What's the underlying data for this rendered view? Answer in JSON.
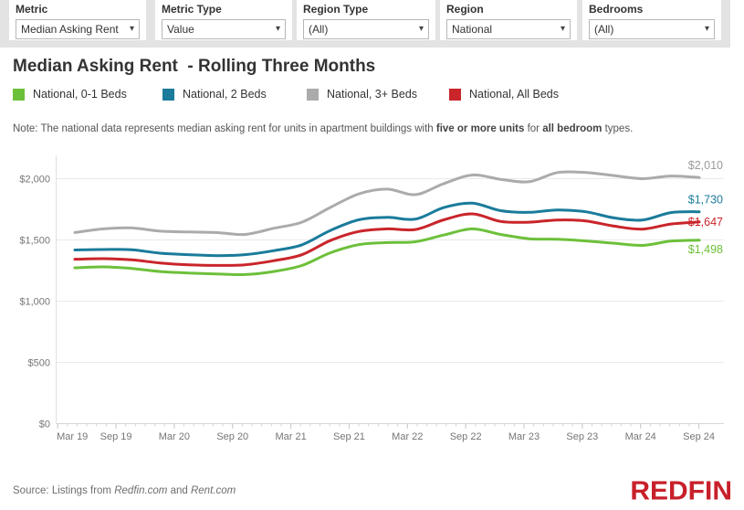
{
  "filters": [
    {
      "label": "Metric",
      "value": "Median Asking Rent"
    },
    {
      "label": "Metric Type",
      "value": "Value"
    },
    {
      "label": "Region Type",
      "value": "(All)"
    },
    {
      "label": "Region",
      "value": "National"
    },
    {
      "label": "Bedrooms",
      "value": "(All)"
    }
  ],
  "title": "Median Asking Rent  - Rolling Three Months",
  "note": {
    "prefix": "Note: The national data represents median asking rent for units in apartment buildings with ",
    "bold1": "five or more units",
    "mid": " for ",
    "bold2": "all bedroom",
    "suffix": " types."
  },
  "source": {
    "prefix": "Source: Listings from ",
    "italic1": "Redfin.com",
    "mid": " and ",
    "italic2": "Rent.com"
  },
  "logo_text": "REDFIN",
  "brand_color": "#C8202A",
  "chart_data": {
    "type": "line",
    "title": "Median Asking Rent  - Rolling Three Months",
    "xlabel": "",
    "ylabel": "",
    "ylim": [
      0,
      2150
    ],
    "grid": "horizontal",
    "legend_position": "top",
    "y_ticks": [
      0,
      500,
      1000,
      1500,
      2000
    ],
    "y_tick_labels": [
      "$0",
      "$500",
      "$1,000",
      "$1,500",
      "$2,000"
    ],
    "x_tick_labels": [
      "Mar 19",
      "Sep 19",
      "Mar 20",
      "Sep 20",
      "Mar 21",
      "Sep 21",
      "Mar 22",
      "Sep 22",
      "Mar 23",
      "Sep 23",
      "Mar 24",
      "Sep 24"
    ],
    "categories": [
      "Mar 19",
      "Jun 19",
      "Sep 19",
      "Dec 19",
      "Mar 20",
      "Jun 20",
      "Sep 20",
      "Dec 20",
      "Mar 21",
      "Jun 21",
      "Sep 21",
      "Dec 21",
      "Mar 22",
      "Jun 22",
      "Sep 22",
      "Dec 22",
      "Mar 23",
      "Jun 23",
      "Sep 23",
      "Dec 23",
      "Mar 24",
      "Jun 24",
      "Sep 24"
    ],
    "series": [
      {
        "name": "National, 0-1 Beds",
        "color": "#6DC03A",
        "end_label": "$1,498",
        "end_value": 1498,
        "values": [
          1272,
          1280,
          1267,
          1242,
          1230,
          1222,
          1217,
          1242,
          1291,
          1395,
          1461,
          1478,
          1485,
          1540,
          1590,
          1545,
          1510,
          1505,
          1492,
          1473,
          1455,
          1490,
          1498
        ]
      },
      {
        "name": "National, 2 Beds",
        "color": "#1A7B9B",
        "end_label": "$1,730",
        "end_value": 1730,
        "values": [
          1418,
          1422,
          1420,
          1392,
          1380,
          1372,
          1380,
          1412,
          1460,
          1577,
          1664,
          1684,
          1670,
          1764,
          1800,
          1739,
          1725,
          1745,
          1730,
          1680,
          1663,
          1723,
          1730
        ]
      },
      {
        "name": "National, 3+ Beds",
        "color": "#ABABAB",
        "end_label": "$2,010",
        "end_value": 2010,
        "values": [
          1560,
          1590,
          1598,
          1572,
          1565,
          1560,
          1545,
          1595,
          1645,
          1765,
          1875,
          1915,
          1870,
          1960,
          2030,
          1995,
          1975,
          2050,
          2050,
          2025,
          2000,
          2022,
          2010
        ]
      },
      {
        "name": "National, All Beds",
        "color": "#C9252B",
        "end_label": "$1,647",
        "end_value": 1647,
        "values": [
          1342,
          1347,
          1337,
          1312,
          1297,
          1292,
          1297,
          1330,
          1379,
          1495,
          1569,
          1590,
          1585,
          1664,
          1713,
          1651,
          1645,
          1663,
          1655,
          1613,
          1588,
          1630,
          1647
        ]
      }
    ]
  }
}
